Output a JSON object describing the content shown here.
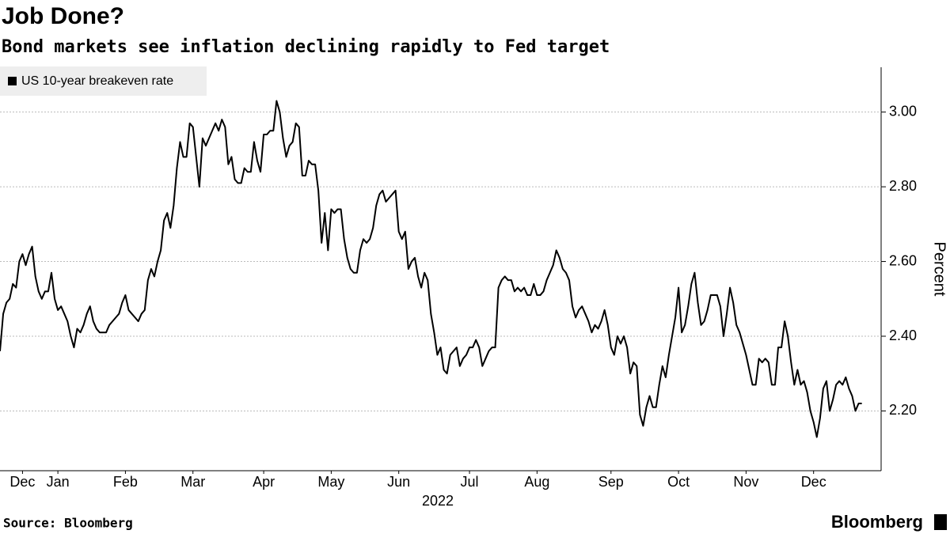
{
  "chart_data": {
    "type": "line",
    "title": "Job Done?",
    "subtitle": "Bond markets see inflation declining rapidly to Fed target",
    "ylabel": "Percent",
    "xlabel": "2022",
    "source": "Source: Bloomberg",
    "brand": "Bloomberg",
    "grid": true,
    "legend": "top-left",
    "xlim": [
      0,
      274
    ],
    "xticks": [
      {
        "value": 7,
        "label": "Dec"
      },
      {
        "value": 18,
        "label": "Jan"
      },
      {
        "value": 39,
        "label": "Feb"
      },
      {
        "value": 60,
        "label": "Mar"
      },
      {
        "value": 82,
        "label": "Apr"
      },
      {
        "value": 103,
        "label": "May"
      },
      {
        "value": 124,
        "label": "Jun"
      },
      {
        "value": 146,
        "label": "Jul"
      },
      {
        "value": 167,
        "label": "Aug"
      },
      {
        "value": 190,
        "label": "Sep"
      },
      {
        "value": 211,
        "label": "Oct"
      },
      {
        "value": 232,
        "label": "Nov"
      },
      {
        "value": 253,
        "label": "Dec"
      }
    ],
    "ylim": [
      2.04,
      3.12
    ],
    "yticks": [
      {
        "value": 2.2,
        "label": "2.20"
      },
      {
        "value": 2.4,
        "label": "2.40"
      },
      {
        "value": 2.6,
        "label": "2.60"
      },
      {
        "value": 2.8,
        "label": "2.80"
      },
      {
        "value": 3,
        "label": "3.00"
      }
    ],
    "series": [
      {
        "name": "US 10-year breakeven rate",
        "color": "#000000",
        "values": [
          2.36,
          2.46,
          2.49,
          2.5,
          2.54,
          2.53,
          2.6,
          2.62,
          2.59,
          2.62,
          2.64,
          2.56,
          2.52,
          2.5,
          2.52,
          2.52,
          2.57,
          2.5,
          2.47,
          2.48,
          2.46,
          2.44,
          2.4,
          2.37,
          2.42,
          2.41,
          2.43,
          2.46,
          2.48,
          2.44,
          2.42,
          2.41,
          2.41,
          2.41,
          2.43,
          2.44,
          2.45,
          2.46,
          2.49,
          2.51,
          2.47,
          2.46,
          2.45,
          2.44,
          2.46,
          2.47,
          2.55,
          2.58,
          2.56,
          2.6,
          2.63,
          2.71,
          2.73,
          2.69,
          2.75,
          2.85,
          2.92,
          2.88,
          2.88,
          2.97,
          2.96,
          2.88,
          2.8,
          2.93,
          2.91,
          2.93,
          2.95,
          2.97,
          2.95,
          2.98,
          2.96,
          2.86,
          2.88,
          2.82,
          2.81,
          2.81,
          2.85,
          2.84,
          2.84,
          2.92,
          2.87,
          2.84,
          2.94,
          2.94,
          2.95,
          2.95,
          3.03,
          3.0,
          2.93,
          2.88,
          2.91,
          2.92,
          2.97,
          2.96,
          2.83,
          2.83,
          2.87,
          2.86,
          2.86,
          2.79,
          2.65,
          2.73,
          2.63,
          2.74,
          2.73,
          2.74,
          2.74,
          2.66,
          2.61,
          2.58,
          2.57,
          2.57,
          2.63,
          2.66,
          2.65,
          2.66,
          2.69,
          2.75,
          2.78,
          2.79,
          2.76,
          2.77,
          2.78,
          2.79,
          2.68,
          2.66,
          2.68,
          2.58,
          2.6,
          2.61,
          2.56,
          2.53,
          2.57,
          2.55,
          2.46,
          2.41,
          2.35,
          2.37,
          2.31,
          2.3,
          2.35,
          2.36,
          2.37,
          2.32,
          2.34,
          2.35,
          2.37,
          2.37,
          2.39,
          2.37,
          2.32,
          2.34,
          2.36,
          2.37,
          2.37,
          2.53,
          2.55,
          2.56,
          2.55,
          2.55,
          2.52,
          2.53,
          2.52,
          2.53,
          2.51,
          2.51,
          2.54,
          2.51,
          2.51,
          2.52,
          2.55,
          2.57,
          2.59,
          2.63,
          2.61,
          2.58,
          2.57,
          2.55,
          2.48,
          2.45,
          2.47,
          2.48,
          2.46,
          2.44,
          2.41,
          2.43,
          2.42,
          2.44,
          2.47,
          2.43,
          2.37,
          2.35,
          2.4,
          2.38,
          2.4,
          2.37,
          2.3,
          2.33,
          2.32,
          2.19,
          2.16,
          2.21,
          2.24,
          2.21,
          2.21,
          2.27,
          2.32,
          2.29,
          2.35,
          2.4,
          2.45,
          2.53,
          2.41,
          2.43,
          2.48,
          2.54,
          2.57,
          2.49,
          2.43,
          2.44,
          2.47,
          2.51,
          2.51,
          2.51,
          2.48,
          2.4,
          2.46,
          2.53,
          2.49,
          2.43,
          2.41,
          2.38,
          2.35,
          2.31,
          2.27,
          2.27,
          2.34,
          2.33,
          2.34,
          2.33,
          2.27,
          2.27,
          2.37,
          2.37,
          2.44,
          2.4,
          2.33,
          2.27,
          2.31,
          2.27,
          2.28,
          2.25,
          2.2,
          2.17,
          2.13,
          2.18,
          2.26,
          2.28,
          2.2,
          2.23,
          2.27,
          2.28,
          2.27,
          2.29,
          2.26,
          2.24,
          2.2,
          2.22,
          2.22
        ]
      }
    ]
  }
}
